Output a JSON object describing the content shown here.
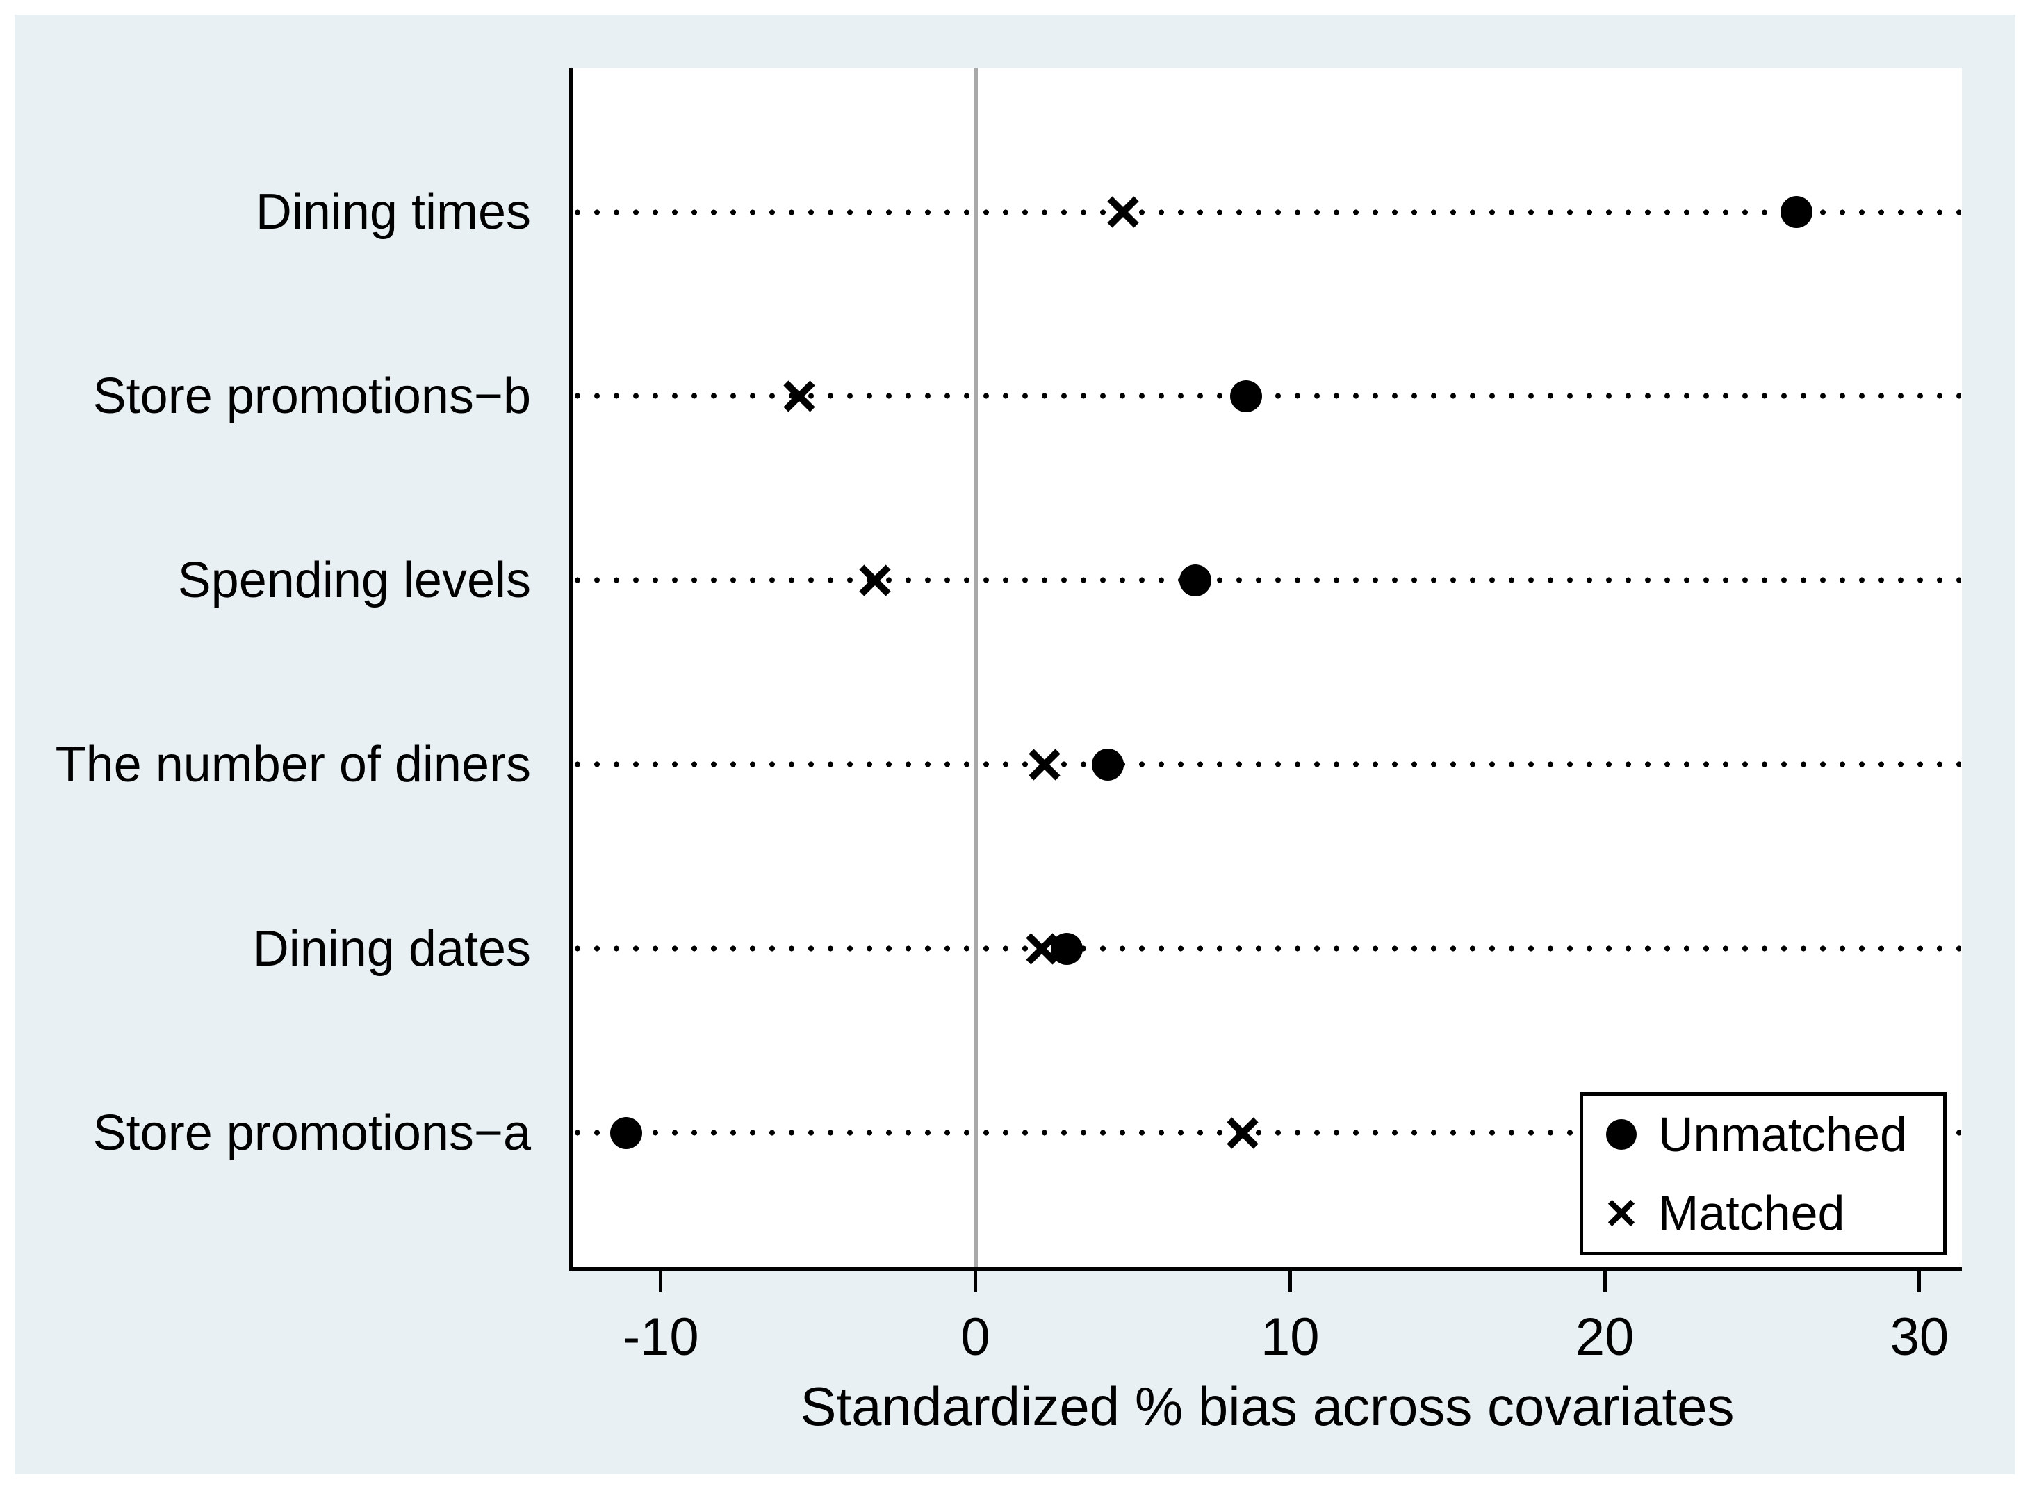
{
  "figure": {
    "outer_background": "#ffffff",
    "panel_background": "#e9f0f3",
    "plot_background": "#ffffff"
  },
  "chart_data": {
    "type": "scatter",
    "subtype": "horizontal-dot-plot-covariate-balance",
    "title": "",
    "xlabel": "Standardized % bias across covariates",
    "ylabel": "",
    "categories": [
      "Dining times",
      "Store promotions−b",
      "Spending levels",
      "The number of diners",
      "Dining dates",
      "Store promotions−a"
    ],
    "series": [
      {
        "name": "Unmatched",
        "marker": "circle",
        "values": [
          26.1,
          8.6,
          7.0,
          4.2,
          2.9,
          -11.1
        ]
      },
      {
        "name": "Matched",
        "marker": "x",
        "values": [
          4.7,
          -5.6,
          -3.2,
          2.2,
          2.1,
          8.5
        ]
      }
    ],
    "x_ticks": [
      -10,
      0,
      10,
      20,
      30
    ],
    "xlim": [
      -12.8,
      31.35
    ],
    "reference_line_x": 0,
    "grid": "dotted horizontal line per category row",
    "legend_position": "bottom-right-inside",
    "colors": {
      "marker": "#000000",
      "reference_line": "#a9a9a9",
      "axis": "#000000",
      "row_dots": "#000000"
    }
  },
  "legend": {
    "items": [
      {
        "label": "Unmatched",
        "marker": "circle"
      },
      {
        "label": "Matched",
        "marker": "x"
      }
    ]
  }
}
